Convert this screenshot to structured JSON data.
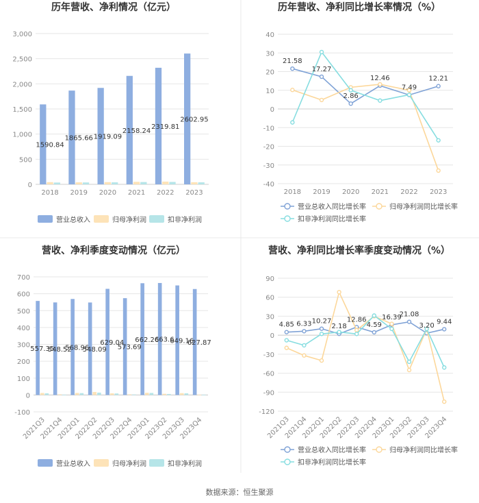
{
  "source": "数据来源：恒生聚源",
  "colors": {
    "revenue": "#8eaee0",
    "np_parent": "#fde3b8",
    "np_deduct": "#b6e5e8",
    "line_revenue": "#7fa2d6",
    "line_parent": "#fcd79a",
    "line_deduct": "#86dde0",
    "grid": "#e6e6e6",
    "axis_text": "#888888",
    "label": "#333333",
    "title": "#333333",
    "divider": "#e9e9e9"
  },
  "chart_data": [
    {
      "id": "annual-amounts",
      "type": "bar",
      "title": "历年营收、净利情况（亿元）",
      "categories": [
        "2018",
        "2019",
        "2020",
        "2021",
        "2022",
        "2023"
      ],
      "ylim": [
        0,
        3000
      ],
      "yticks": [
        0,
        500,
        1000,
        1500,
        2000,
        2500,
        3000
      ],
      "ytick_labels": [
        "0",
        "500",
        "1,000",
        "1,500",
        "2,000",
        "2,500",
        "3,000"
      ],
      "series": [
        {
          "name": "营业总收入",
          "values": [
            1590.84,
            1865.66,
            1919.09,
            2158.24,
            2319.81,
            2602.95
          ],
          "labels": [
            "1590.84",
            "1865.66",
            "1919.09",
            "2158.24",
            "2319.81",
            "2602.95"
          ]
        },
        {
          "name": "归母净利润",
          "values": [
            44,
            40,
            44,
            50,
            54,
            42
          ]
        },
        {
          "name": "扣非净利润",
          "values": [
            36,
            38,
            40,
            46,
            48,
            40
          ]
        }
      ]
    },
    {
      "id": "annual-growth",
      "type": "line",
      "title": "历年营收、净利同比增长率情况（%）",
      "categories": [
        "2018",
        "2019",
        "2020",
        "2021",
        "2022",
        "2023"
      ],
      "ylim": [
        -40,
        40
      ],
      "yticks": [
        -40,
        -30,
        -20,
        -10,
        0,
        10,
        20,
        30,
        40
      ],
      "ytick_labels": [
        "-40",
        "-30",
        "-20",
        "-10",
        "0",
        "10",
        "20",
        "30",
        "40"
      ],
      "series": [
        {
          "name": "营业总收入同比增长率",
          "values": [
            21.58,
            17.27,
            2.86,
            12.46,
            7.49,
            12.21
          ],
          "labels": [
            "21.58",
            "17.27",
            "2.86",
            "12.46",
            "7.49",
            "12.21"
          ]
        },
        {
          "name": "归母净利润同比增长率",
          "values": [
            10.2,
            4.8,
            11.6,
            13.2,
            10.0,
            -33.0
          ]
        },
        {
          "name": "扣非净利润同比增长率",
          "values": [
            -7.2,
            30.5,
            10.0,
            4.5,
            7.6,
            -16.8
          ]
        }
      ]
    },
    {
      "id": "quarterly-amounts",
      "type": "bar",
      "title": "营收、净利季度变动情况（亿元）",
      "categories": [
        "2021Q3",
        "2021Q4",
        "2022Q1",
        "2022Q2",
        "2022Q3",
        "2022Q4",
        "2023Q1",
        "2023Q2",
        "2023Q3",
        "2023Q4"
      ],
      "ylim": [
        -100,
        700
      ],
      "yticks": [
        -100,
        0,
        100,
        200,
        300,
        400,
        500,
        600,
        700
      ],
      "ytick_labels": [
        "-100",
        "0",
        "100",
        "200",
        "300",
        "400",
        "500",
        "600",
        "700"
      ],
      "series": [
        {
          "name": "营业总收入",
          "values": [
            557.35,
            548.52,
            568.96,
            548.09,
            629.04,
            573.69,
            662.26,
            663.6,
            649.16,
            627.87
          ],
          "labels": [
            "557.35",
            "548.52",
            "568.96",
            "548.09",
            "629.04",
            "573.69",
            "662.26",
            "663.6",
            "649.16",
            "627.87"
          ]
        },
        {
          "name": "归母净利润",
          "values": [
            12,
            4,
            12,
            18,
            10,
            4,
            13,
            7,
            11,
            2
          ]
        },
        {
          "name": "扣非净利润",
          "values": [
            10,
            2,
            11,
            14,
            9,
            3,
            12,
            6,
            10,
            2
          ]
        }
      ]
    },
    {
      "id": "quarterly-growth",
      "type": "line",
      "title": "营收、净利同比增长率季度变动情况（%）",
      "categories": [
        "2021Q3",
        "2021Q4",
        "2022Q1",
        "2022Q2",
        "2022Q3",
        "2022Q4",
        "2023Q1",
        "2023Q2",
        "2023Q3",
        "2023Q4"
      ],
      "ylim": [
        -120,
        90
      ],
      "yticks": [
        -120,
        -90,
        -60,
        -30,
        0,
        30,
        60,
        90
      ],
      "ytick_labels": [
        "-120",
        "-90",
        "-60",
        "-30",
        "0",
        "30",
        "60",
        "90"
      ],
      "series": [
        {
          "name": "营业总收入同比增长率",
          "values": [
            4.85,
            6.33,
            10.27,
            2.18,
            12.86,
            4.59,
            16.39,
            21.08,
            3.2,
            9.44
          ],
          "labels": [
            "4.85",
            "6.33",
            "10.27",
            "2.18",
            "12.86",
            "4.59",
            "16.39",
            "21.08",
            "3.20",
            "9.44"
          ]
        },
        {
          "name": "归母净利润同比增长率",
          "values": [
            -20,
            -32,
            -40,
            68,
            8,
            30,
            18,
            -55,
            10,
            -105
          ]
        },
        {
          "name": "扣非净利润同比增长率",
          "values": [
            -8,
            -16,
            2,
            5,
            2,
            31,
            10,
            -42,
            10,
            -51
          ]
        }
      ]
    }
  ]
}
